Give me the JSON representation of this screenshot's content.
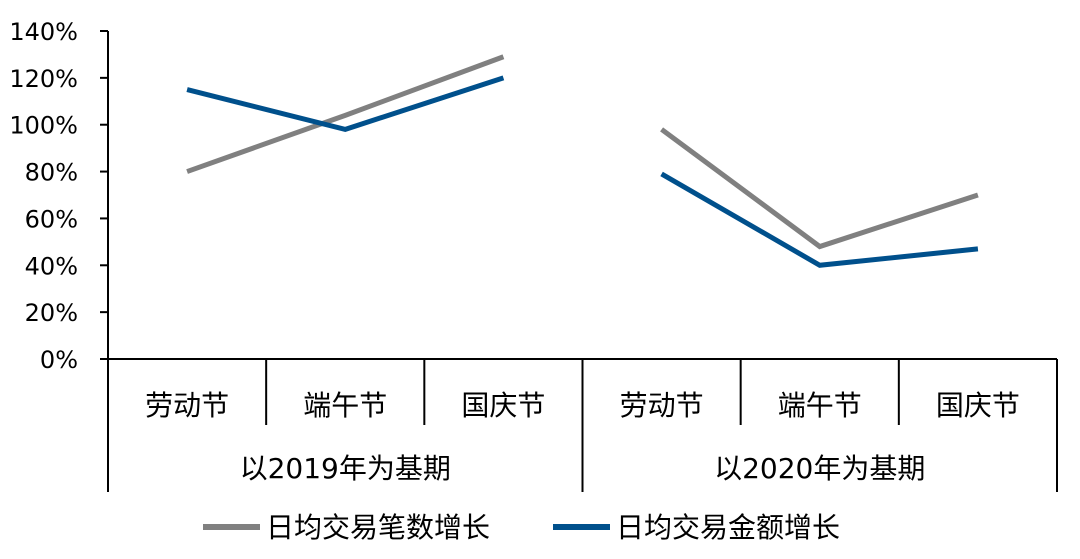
{
  "chart_data": {
    "type": "line",
    "categories": [
      "劳动节",
      "端午节",
      "国庆节",
      "劳动节",
      "端午节",
      "国庆节"
    ],
    "groups": [
      {
        "label": "以2019年为基期",
        "categories": [
          "劳动节",
          "端午节",
          "国庆节"
        ]
      },
      {
        "label": "以2020年为基期",
        "categories": [
          "劳动节",
          "端午节",
          "国庆节"
        ]
      }
    ],
    "series": [
      {
        "name": "日均交易笔数增长",
        "color": "#808080",
        "values": [
          0.8,
          1.04,
          1.29,
          0.98,
          0.48,
          0.7
        ]
      },
      {
        "name": "日均交易金额增长",
        "color": "#00508C",
        "values": [
          1.15,
          0.98,
          1.2,
          0.79,
          0.4,
          0.47
        ]
      }
    ],
    "yticks": [
      "0%",
      "20%",
      "40%",
      "60%",
      "80%",
      "100%",
      "120%",
      "140%"
    ],
    "ylim": [
      0,
      1.4
    ],
    "grid": false,
    "legend_position": "bottom"
  }
}
